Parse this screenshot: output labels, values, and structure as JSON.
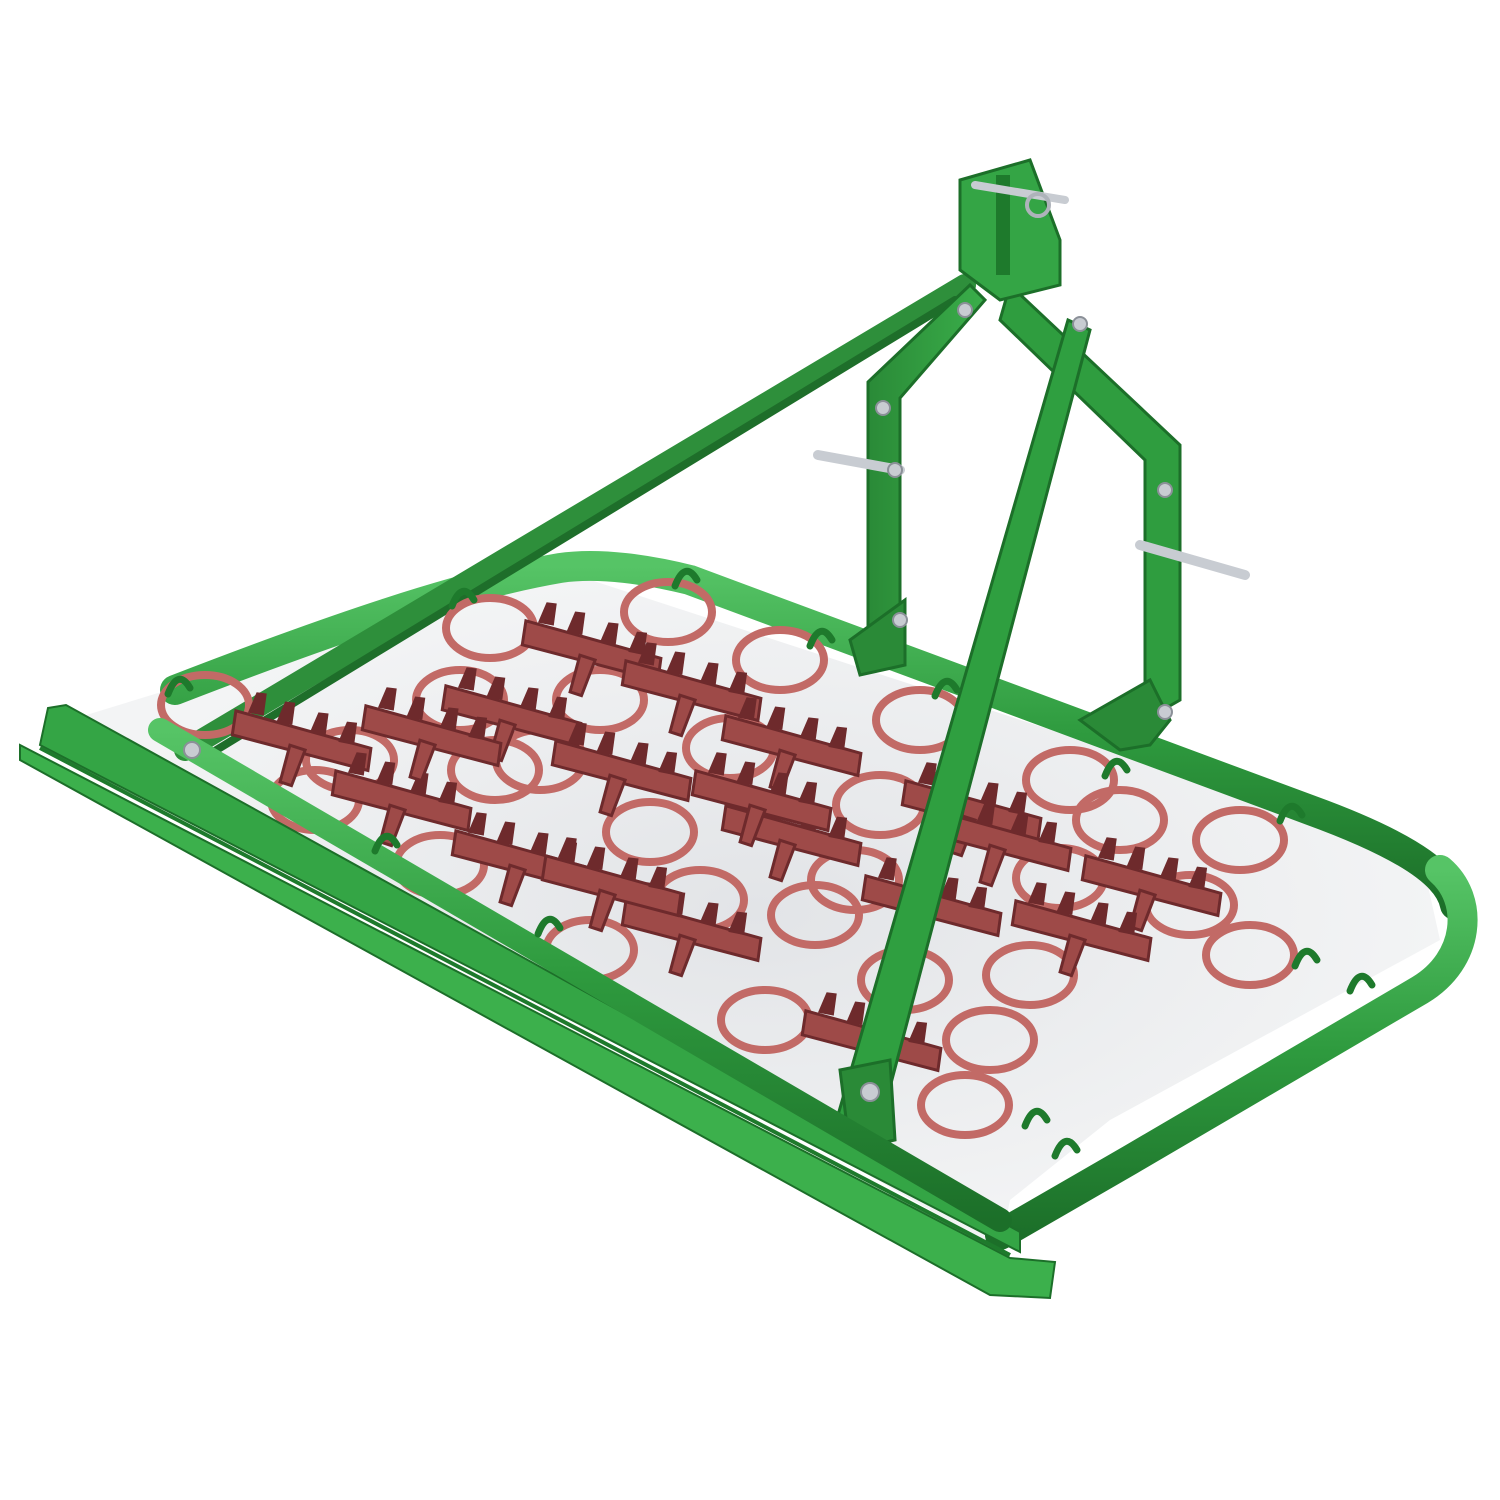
{
  "image": {
    "subject": "chain harrow",
    "colors": {
      "background": "#ffffff",
      "frame_green": "#2e9a3e",
      "frame_green_dark": "#1e7a2c",
      "frame_green_light": "#49b95a",
      "mesh_red": "#9e4a48",
      "mesh_red_dark": "#6e2a2c",
      "ring_red": "#c26a66",
      "steel": "#c8ccd2",
      "shadow": "#d8dbdf"
    },
    "mesh": {
      "rows": 4,
      "columns": 4,
      "ring_count": 30
    }
  }
}
